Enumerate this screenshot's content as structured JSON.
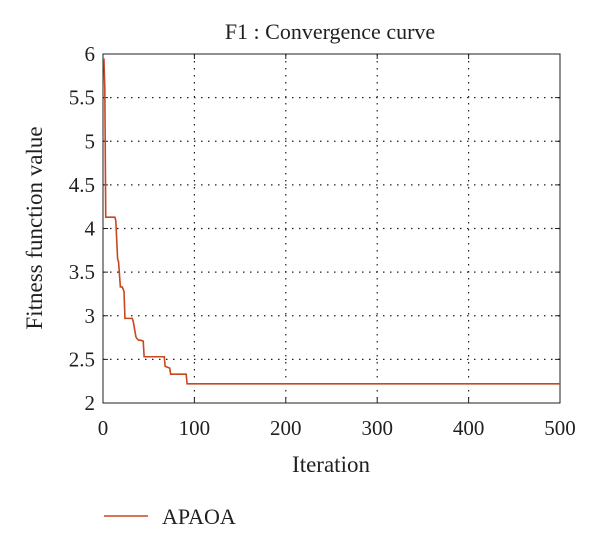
{
  "chart_data": {
    "type": "line",
    "title": "F1 : Convergence curve",
    "xlabel": "Iteration",
    "ylabel": "Fitness function value",
    "xlim": [
      0,
      500
    ],
    "ylim": [
      2,
      6
    ],
    "xticks": [
      0,
      100,
      200,
      300,
      400,
      500
    ],
    "xtick_labels": [
      "0",
      "100",
      "200",
      "300",
      "400",
      "500"
    ],
    "yticks": [
      2,
      2.5,
      3,
      3.5,
      4,
      4.5,
      5,
      5.5,
      6
    ],
    "ytick_labels": [
      "2",
      "2.5",
      "3",
      "3.5",
      "4",
      "4.5",
      "5",
      "5.5",
      "6"
    ],
    "grid": true,
    "legend_position": "bottom-left",
    "series": [
      {
        "name": "APAOA",
        "color": "#c8471f",
        "x": [
          1,
          2,
          3,
          13,
          14,
          16,
          17,
          19,
          21,
          23,
          24,
          32,
          33,
          36,
          37,
          39,
          41,
          44,
          45,
          67,
          68,
          73,
          74,
          91,
          92,
          500
        ],
        "y": [
          5.95,
          5.6,
          4.13,
          4.13,
          4.09,
          3.65,
          3.62,
          3.33,
          3.33,
          3.28,
          2.97,
          2.97,
          2.94,
          2.76,
          2.74,
          2.72,
          2.72,
          2.71,
          2.53,
          2.53,
          2.42,
          2.4,
          2.33,
          2.33,
          2.22,
          2.22
        ]
      }
    ]
  }
}
